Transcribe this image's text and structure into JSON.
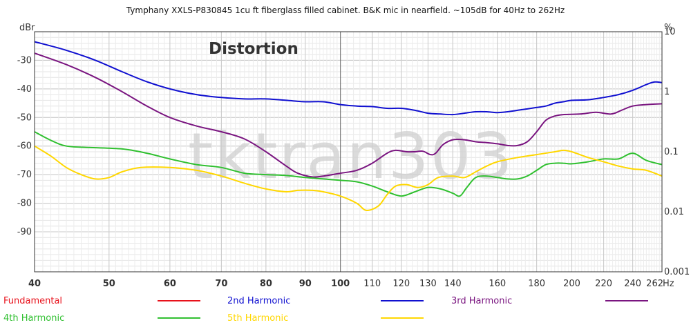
{
  "chart_data": {
    "type": "line",
    "title": "Tymphany XXLS-P830845 1cu ft fiberglass filled cabinet. B&K mic in nearfield. ~105dB for 40Hz to 262Hz",
    "annotation": "Distortion",
    "watermark": "tktran303",
    "ylabel_left": "dBr",
    "ylabel_right": "%",
    "xlabel": "Hz",
    "x_scale": "log",
    "xlim": [
      40,
      262
    ],
    "ylim_left": [
      -104,
      -20
    ],
    "ylim_right": [
      0.001,
      10
    ],
    "grid": true,
    "x_ticks": [
      {
        "v": 40,
        "label": "40"
      },
      {
        "v": 50,
        "label": "50"
      },
      {
        "v": 60,
        "label": "60"
      },
      {
        "v": 70,
        "label": "70"
      },
      {
        "v": 80,
        "label": "80"
      },
      {
        "v": 90,
        "label": "90"
      },
      {
        "v": 100,
        "label": "100"
      },
      {
        "v": 110,
        "label": "110"
      },
      {
        "v": 120,
        "label": "120"
      },
      {
        "v": 130,
        "label": "130"
      },
      {
        "v": 140,
        "label": "140"
      },
      {
        "v": 160,
        "label": "160"
      },
      {
        "v": 180,
        "label": "180"
      },
      {
        "v": 200,
        "label": "200"
      },
      {
        "v": 220,
        "label": "220"
      },
      {
        "v": 240,
        "label": "240"
      },
      {
        "v": 262,
        "label": "262"
      }
    ],
    "y_ticks_left": [
      {
        "v": -30,
        "label": "-30"
      },
      {
        "v": -40,
        "label": "-40"
      },
      {
        "v": -50,
        "label": "-50"
      },
      {
        "v": -60,
        "label": "-60"
      },
      {
        "v": -70,
        "label": "-70"
      },
      {
        "v": -80,
        "label": "-80"
      },
      {
        "v": -90,
        "label": "-90"
      }
    ],
    "y_ticks_right": [
      {
        "v": 10,
        "label": "10"
      },
      {
        "v": 1,
        "label": "1"
      },
      {
        "v": 0.1,
        "label": "0.1"
      },
      {
        "v": 0.01,
        "label": "0.01"
      },
      {
        "v": 0.001,
        "label": "0.001"
      }
    ],
    "legend": [
      {
        "name": "Fundamental",
        "color": "#e8111b"
      },
      {
        "name": "2nd Harmonic",
        "color": "#1010d0"
      },
      {
        "name": "3rd Harmonic",
        "color": "#7a1580"
      },
      {
        "name": "4th Harmonic",
        "color": "#30c030"
      },
      {
        "name": "5th Harmonic",
        "color": "#ffd700"
      }
    ],
    "series": [
      {
        "name": "2nd Harmonic",
        "color": "#1010d0",
        "points": [
          [
            40,
            -23.5
          ],
          [
            44,
            -26.5
          ],
          [
            48,
            -30
          ],
          [
            52,
            -34
          ],
          [
            56,
            -37.5
          ],
          [
            60,
            -40
          ],
          [
            65,
            -42
          ],
          [
            70,
            -43
          ],
          [
            75,
            -43.5
          ],
          [
            80,
            -43.5
          ],
          [
            85,
            -44
          ],
          [
            90,
            -44.5
          ],
          [
            95,
            -44.5
          ],
          [
            100,
            -45.5
          ],
          [
            105,
            -46
          ],
          [
            110,
            -46.2
          ],
          [
            115,
            -46.8
          ],
          [
            120,
            -46.8
          ],
          [
            125,
            -47.5
          ],
          [
            130,
            -48.5
          ],
          [
            135,
            -48.8
          ],
          [
            140,
            -49
          ],
          [
            145,
            -48.5
          ],
          [
            150,
            -48
          ],
          [
            155,
            -48
          ],
          [
            160,
            -48.3
          ],
          [
            165,
            -48
          ],
          [
            170,
            -47.5
          ],
          [
            175,
            -47
          ],
          [
            180,
            -46.5
          ],
          [
            185,
            -46
          ],
          [
            190,
            -45
          ],
          [
            195,
            -44.5
          ],
          [
            200,
            -44
          ],
          [
            210,
            -43.8
          ],
          [
            220,
            -43
          ],
          [
            230,
            -42
          ],
          [
            240,
            -40.5
          ],
          [
            250,
            -38.5
          ],
          [
            256,
            -37.6
          ],
          [
            262,
            -37.8
          ]
        ]
      },
      {
        "name": "3rd Harmonic",
        "color": "#7a1580",
        "points": [
          [
            40,
            -27.5
          ],
          [
            44,
            -31.5
          ],
          [
            48,
            -36
          ],
          [
            52,
            -41
          ],
          [
            56,
            -46
          ],
          [
            60,
            -50
          ],
          [
            65,
            -53
          ],
          [
            70,
            -55
          ],
          [
            75,
            -57.5
          ],
          [
            80,
            -62
          ],
          [
            85,
            -67
          ],
          [
            88,
            -69.5
          ],
          [
            92,
            -70.8
          ],
          [
            95,
            -70.5
          ],
          [
            100,
            -69.5
          ],
          [
            105,
            -68.5
          ],
          [
            110,
            -66
          ],
          [
            115,
            -62.5
          ],
          [
            118,
            -61.5
          ],
          [
            122,
            -62
          ],
          [
            125,
            -62
          ],
          [
            128,
            -61.8
          ],
          [
            131,
            -63
          ],
          [
            133,
            -62.5
          ],
          [
            136,
            -59.5
          ],
          [
            140,
            -57.8
          ],
          [
            145,
            -57.8
          ],
          [
            150,
            -58.5
          ],
          [
            155,
            -58.8
          ],
          [
            160,
            -59.2
          ],
          [
            165,
            -59.8
          ],
          [
            170,
            -59.8
          ],
          [
            175,
            -58.5
          ],
          [
            180,
            -55
          ],
          [
            185,
            -51
          ],
          [
            190,
            -49.5
          ],
          [
            195,
            -49
          ],
          [
            205,
            -48.8
          ],
          [
            215,
            -48.2
          ],
          [
            225,
            -48.8
          ],
          [
            232,
            -47.5
          ],
          [
            240,
            -46
          ],
          [
            250,
            -45.5
          ],
          [
            262,
            -45.2
          ]
        ]
      },
      {
        "name": "4th Harmonic",
        "color": "#30c030",
        "points": [
          [
            40,
            -55
          ],
          [
            42,
            -58
          ],
          [
            44,
            -60
          ],
          [
            47,
            -60.5
          ],
          [
            52,
            -61
          ],
          [
            56,
            -62.5
          ],
          [
            60,
            -64.5
          ],
          [
            65,
            -66.5
          ],
          [
            70,
            -67.5
          ],
          [
            75,
            -69.5
          ],
          [
            80,
            -70
          ],
          [
            85,
            -70.3
          ],
          [
            90,
            -71
          ],
          [
            95,
            -71.5
          ],
          [
            100,
            -72
          ],
          [
            105,
            -72.5
          ],
          [
            110,
            -74
          ],
          [
            115,
            -76
          ],
          [
            120,
            -77.5
          ],
          [
            125,
            -76
          ],
          [
            130,
            -74.5
          ],
          [
            135,
            -75
          ],
          [
            140,
            -76.5
          ],
          [
            143,
            -77.5
          ],
          [
            146,
            -74.5
          ],
          [
            150,
            -71
          ],
          [
            155,
            -70.5
          ],
          [
            160,
            -71
          ],
          [
            165,
            -71.5
          ],
          [
            170,
            -71.5
          ],
          [
            175,
            -70.5
          ],
          [
            180,
            -68.5
          ],
          [
            185,
            -66.5
          ],
          [
            190,
            -66
          ],
          [
            195,
            -66
          ],
          [
            200,
            -66.2
          ],
          [
            210,
            -65.5
          ],
          [
            220,
            -64.5
          ],
          [
            230,
            -64.5
          ],
          [
            240,
            -62.5
          ],
          [
            250,
            -65
          ],
          [
            262,
            -66.5
          ]
        ]
      },
      {
        "name": "5th Harmonic",
        "color": "#ffd700",
        "points": [
          [
            40,
            -60
          ],
          [
            42,
            -63.5
          ],
          [
            44,
            -67.5
          ],
          [
            46,
            -70
          ],
          [
            48,
            -71.5
          ],
          [
            50,
            -71
          ],
          [
            52,
            -69
          ],
          [
            55,
            -67.5
          ],
          [
            60,
            -67.5
          ],
          [
            65,
            -68.5
          ],
          [
            70,
            -70.5
          ],
          [
            75,
            -73
          ],
          [
            80,
            -75
          ],
          [
            85,
            -76
          ],
          [
            88,
            -75.5
          ],
          [
            92,
            -75.5
          ],
          [
            95,
            -76
          ],
          [
            100,
            -77.5
          ],
          [
            105,
            -80
          ],
          [
            108,
            -82.5
          ],
          [
            112,
            -81
          ],
          [
            115,
            -77
          ],
          [
            118,
            -74
          ],
          [
            122,
            -73.5
          ],
          [
            126,
            -74.5
          ],
          [
            130,
            -73.5
          ],
          [
            134,
            -71
          ],
          [
            140,
            -70.5
          ],
          [
            145,
            -71
          ],
          [
            150,
            -69
          ],
          [
            155,
            -67
          ],
          [
            160,
            -65.5
          ],
          [
            170,
            -64
          ],
          [
            180,
            -63
          ],
          [
            190,
            -62
          ],
          [
            195,
            -61.5
          ],
          [
            200,
            -62
          ],
          [
            210,
            -64
          ],
          [
            220,
            -65.5
          ],
          [
            230,
            -67
          ],
          [
            240,
            -68
          ],
          [
            250,
            -68.5
          ],
          [
            262,
            -70.5
          ]
        ]
      }
    ]
  }
}
